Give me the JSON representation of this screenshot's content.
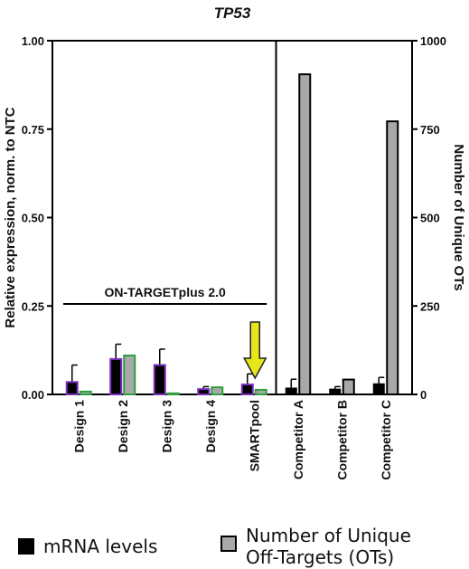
{
  "chart_data": {
    "type": "bar",
    "title": "TP53",
    "ylabel_left": "Relative expression, norm. to NTC",
    "ylabel_right": "Number of Unique OTs",
    "left_axis": {
      "min": 0,
      "max": 1.0,
      "ticks": [
        0,
        0.25,
        0.5,
        0.75,
        1.0
      ],
      "tick_labels": [
        "0.00",
        "0.25",
        "0.50",
        "0.75",
        "1.00"
      ]
    },
    "right_axis": {
      "min": 0,
      "max": 1000,
      "ticks": [
        0,
        250,
        500,
        750,
        1000
      ],
      "tick_labels": [
        "0",
        "250",
        "500",
        "750",
        "1000"
      ]
    },
    "categories": [
      "Design 1",
      "Design 2",
      "Design 3",
      "Design 4",
      "SMARTpool",
      "Competitor A",
      "Competitor B",
      "Competitor C"
    ],
    "series": [
      {
        "name": "mRNA levels",
        "axis": "left",
        "values": [
          0.035,
          0.1,
          0.083,
          0.015,
          0.028,
          0.018,
          0.015,
          0.03
        ],
        "errors": [
          0.048,
          0.042,
          0.045,
          0.007,
          0.03,
          0.025,
          0.007,
          0.018
        ]
      },
      {
        "name": "Number of Unique Off-Targets (OTs)",
        "axis": "right",
        "values": [
          8,
          110,
          3,
          20,
          13,
          905,
          42,
          772
        ]
      }
    ],
    "annotations": [
      {
        "text": "ON-TARGETplus 2.0",
        "spans": [
          "Design 1",
          "SMARTpool"
        ]
      }
    ],
    "legend": {
      "position": "bottom",
      "items": [
        {
          "label": "mRNA levels",
          "color": "#000000"
        },
        {
          "label": "Number of Unique\nOff-Targets (OTs)",
          "color": "#a8a8a8"
        }
      ]
    },
    "colors": {
      "ontarget_bar_border": "#7b2fbf",
      "ontarget_ot_fill": "#a8a8a8",
      "ontarget_ot_border": "#2e9e3e",
      "competitor_ot_fill": "#a8a8a8",
      "arrow_fill": "#e6e61a"
    },
    "grid": false
  }
}
